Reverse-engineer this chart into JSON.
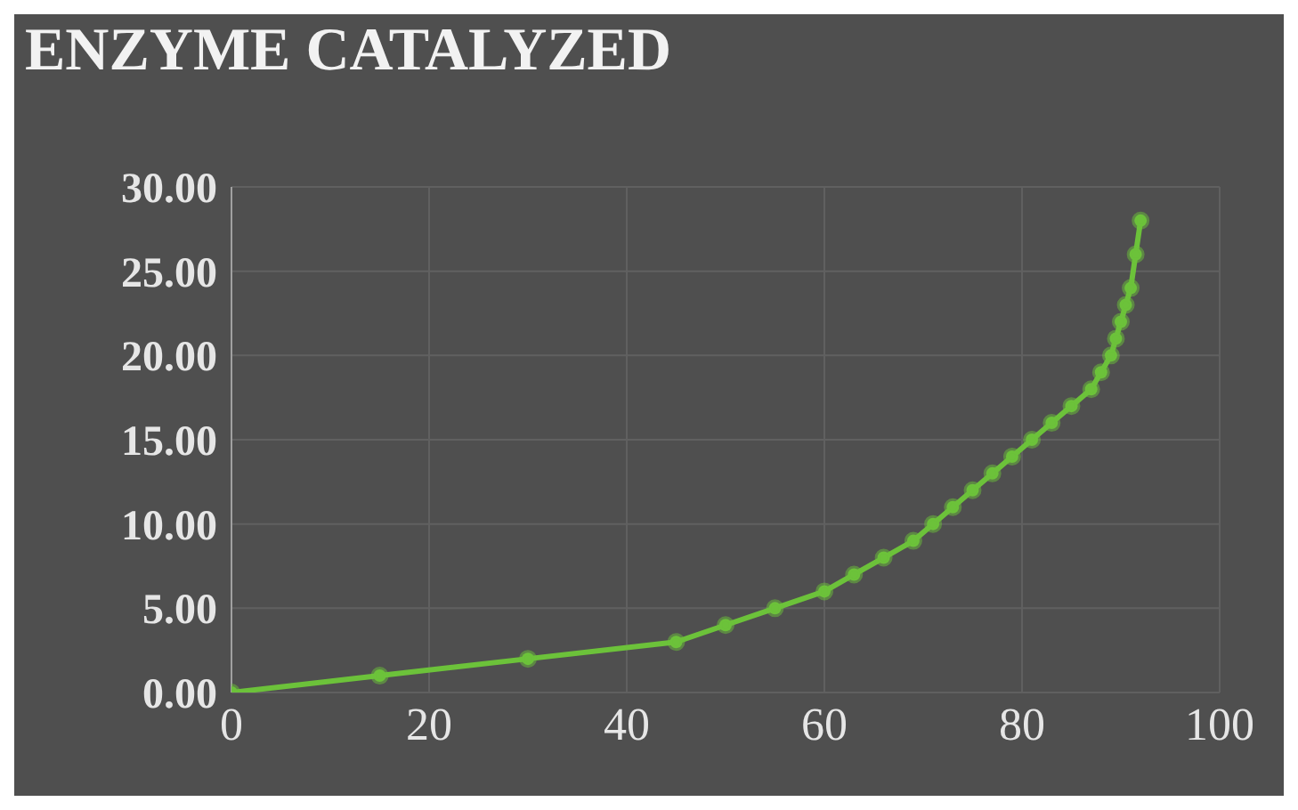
{
  "chart_data": {
    "type": "line",
    "title": "ENZYME CATALYZED",
    "x": [
      0,
      15,
      30,
      45,
      50,
      55,
      60,
      63,
      66,
      69,
      71,
      73,
      75,
      77,
      79,
      81,
      83,
      85,
      87,
      88,
      89,
      89.5,
      90,
      90.5,
      91,
      91.5,
      92
    ],
    "series": [
      {
        "color": "#6cc23a",
        "values": [
          0,
          1,
          2,
          3,
          4,
          5,
          6,
          7,
          8,
          9,
          10,
          11,
          12,
          13,
          14,
          15,
          16,
          17,
          18,
          19,
          20,
          21,
          22,
          23,
          24,
          26,
          28
        ]
      }
    ],
    "xlim": [
      0,
      100
    ],
    "xticks": [
      0,
      20,
      40,
      60,
      80,
      100
    ],
    "ylim": [
      0,
      30
    ],
    "yticks": [
      {
        "value": 0,
        "label": "0.00"
      },
      {
        "value": 5,
        "label": "5.00"
      },
      {
        "value": 10,
        "label": "10.00"
      },
      {
        "value": 15,
        "label": "15.00"
      },
      {
        "value": 20,
        "label": "20.00"
      },
      {
        "value": 25,
        "label": "25.00"
      },
      {
        "value": 30,
        "label": "30.00"
      }
    ],
    "grid": true,
    "marker": "circle",
    "line_style": "solid"
  }
}
